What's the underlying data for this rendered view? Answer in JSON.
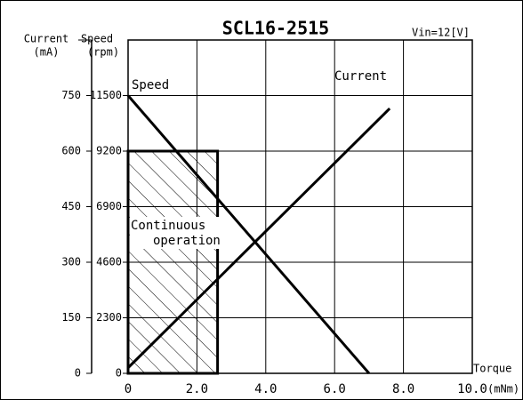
{
  "chart_data": {
    "type": "line",
    "title": "SCL16-2515",
    "subtitle": "Vin=12[V]",
    "x_label": [
      "Torque",
      "(mNm)"
    ],
    "y_label": [
      "Speed",
      "(rpm)"
    ],
    "y2_label": [
      "Current",
      "(mA)"
    ],
    "xlim": [
      0,
      10
    ],
    "xticks": [
      0,
      {
        "value": 2,
        "label": "2.0"
      },
      {
        "value": 4,
        "label": "4.0"
      },
      {
        "value": 6,
        "label": "6.0"
      },
      {
        "value": 8,
        "label": "8.0"
      },
      {
        "value": 10,
        "label": "10.0"
      }
    ],
    "ylim": [
      0,
      13800
    ],
    "yticks": [
      0,
      2300,
      4600,
      6900,
      9200,
      11500
    ],
    "y2lim": [
      0,
      900
    ],
    "y2ticks": [
      0,
      150,
      300,
      450,
      600,
      750
    ],
    "grid": true,
    "series": [
      {
        "name": "Speed",
        "color": "#000000",
        "x": [
          0,
          7
        ],
        "values": [
          11500,
          0
        ]
      },
      {
        "name": "Current",
        "color": "#000000",
        "axis": "y2",
        "x": [
          0,
          7.6
        ],
        "values": [
          15,
          715
        ]
      }
    ],
    "region": {
      "label": [
        "Continuous",
        "operation"
      ],
      "x": [
        0,
        2.6
      ],
      "y": 9200
    }
  }
}
